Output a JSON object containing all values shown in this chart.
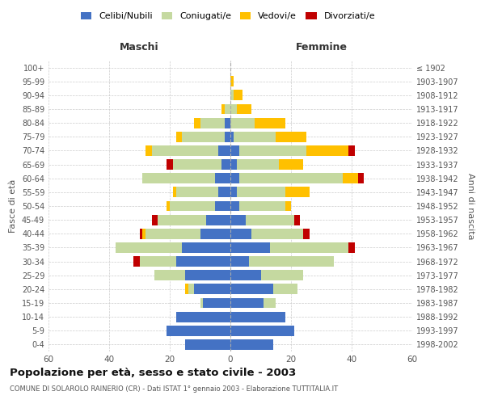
{
  "age_groups": [
    "0-4",
    "5-9",
    "10-14",
    "15-19",
    "20-24",
    "25-29",
    "30-34",
    "35-39",
    "40-44",
    "45-49",
    "50-54",
    "55-59",
    "60-64",
    "65-69",
    "70-74",
    "75-79",
    "80-84",
    "85-89",
    "90-94",
    "95-99",
    "100+"
  ],
  "birth_years": [
    "1998-2002",
    "1993-1997",
    "1988-1992",
    "1983-1987",
    "1978-1982",
    "1973-1977",
    "1968-1972",
    "1963-1967",
    "1958-1962",
    "1953-1957",
    "1948-1952",
    "1943-1947",
    "1938-1942",
    "1933-1937",
    "1928-1932",
    "1923-1927",
    "1918-1922",
    "1913-1917",
    "1908-1912",
    "1903-1907",
    "≤ 1902"
  ],
  "colors": {
    "celibe": "#4472c4",
    "coniugato": "#c5d9a0",
    "vedovo": "#ffc000",
    "divorziato": "#c00000"
  },
  "maschi": {
    "celibe": [
      15,
      21,
      18,
      9,
      12,
      15,
      18,
      16,
      10,
      8,
      5,
      4,
      5,
      3,
      4,
      2,
      2,
      0,
      0,
      0,
      0
    ],
    "coniugato": [
      0,
      0,
      0,
      1,
      2,
      10,
      12,
      22,
      18,
      16,
      15,
      14,
      24,
      16,
      22,
      14,
      8,
      2,
      0,
      0,
      0
    ],
    "vedovo": [
      0,
      0,
      0,
      0,
      1,
      0,
      0,
      0,
      1,
      0,
      1,
      1,
      0,
      0,
      2,
      2,
      2,
      1,
      0,
      0,
      0
    ],
    "divorziato": [
      0,
      0,
      0,
      0,
      0,
      0,
      2,
      0,
      1,
      2,
      0,
      0,
      0,
      2,
      0,
      0,
      0,
      0,
      0,
      0,
      0
    ]
  },
  "femmine": {
    "nubile": [
      14,
      21,
      18,
      11,
      14,
      10,
      6,
      13,
      7,
      5,
      3,
      2,
      3,
      2,
      3,
      1,
      0,
      0,
      0,
      0,
      0
    ],
    "coniugata": [
      0,
      0,
      0,
      4,
      8,
      14,
      28,
      26,
      17,
      16,
      15,
      16,
      34,
      14,
      22,
      14,
      8,
      2,
      1,
      0,
      0
    ],
    "vedova": [
      0,
      0,
      0,
      0,
      0,
      0,
      0,
      0,
      0,
      0,
      2,
      8,
      5,
      8,
      14,
      10,
      10,
      5,
      3,
      1,
      0
    ],
    "divorziata": [
      0,
      0,
      0,
      0,
      0,
      0,
      0,
      2,
      2,
      2,
      0,
      0,
      2,
      0,
      2,
      0,
      0,
      0,
      0,
      0,
      0
    ]
  },
  "title": "Popolazione per età, sesso e stato civile - 2003",
  "subtitle": "COMUNE DI SOLAROLO RAINERIO (CR) - Dati ISTAT 1° gennaio 2003 - Elaborazione TUTTITALIA.IT",
  "xlabel_maschi": "Maschi",
  "xlabel_femmine": "Femmine",
  "ylabel": "Fasce di età",
  "ylabel_right": "Anni di nascita",
  "xlim": 60,
  "background_color": "#ffffff",
  "grid_color": "#cccccc",
  "legend_labels": [
    "Celibi/Nubili",
    "Coniugati/e",
    "Vedovi/e",
    "Divorziati/e"
  ]
}
